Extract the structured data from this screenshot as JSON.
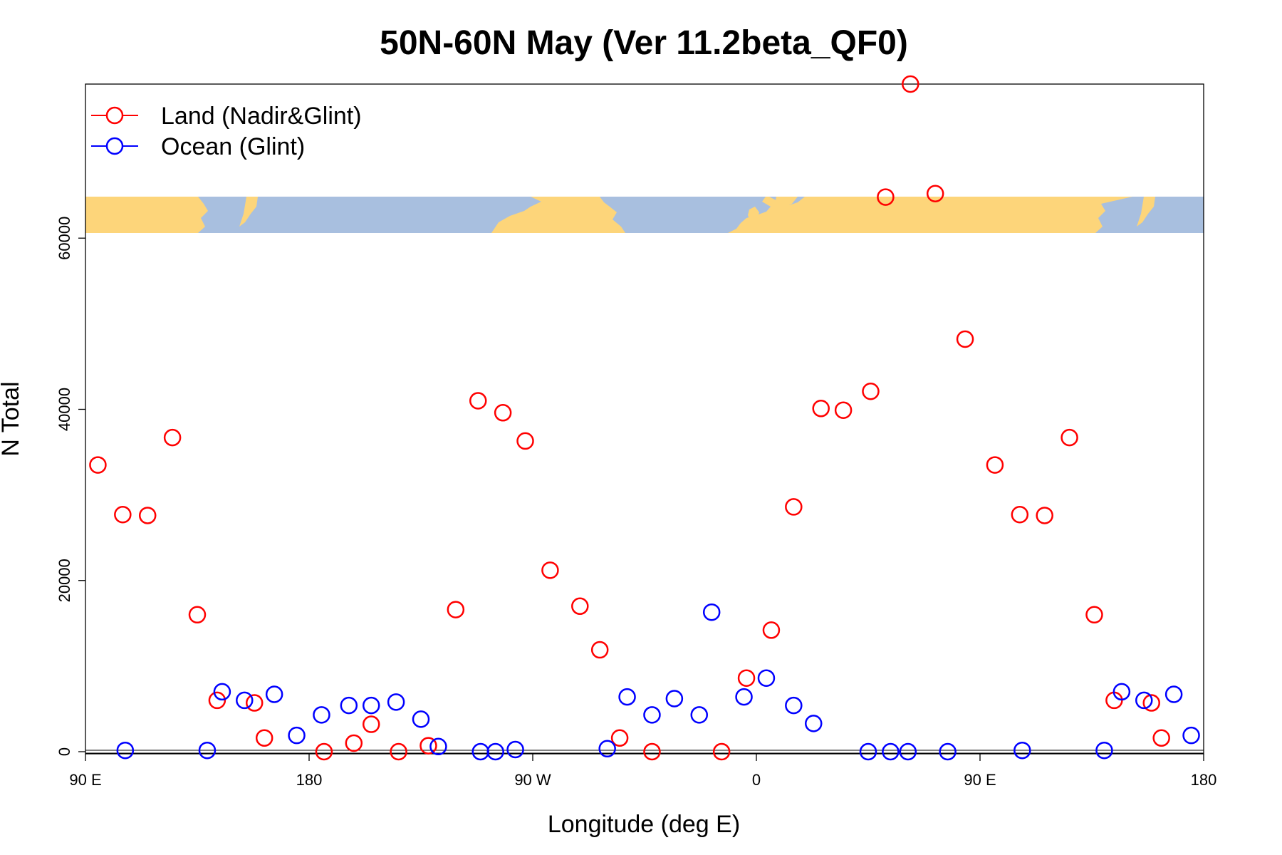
{
  "chart_data": {
    "type": "scatter",
    "title": "50N-60N May (Ver 11.2beta_QF0)",
    "xlabel": "Longitude (deg E)",
    "ylabel": "N Total",
    "xlim": [
      90,
      540
    ],
    "ylim": [
      0,
      78000
    ],
    "x_ticks": [
      {
        "value": 90,
        "label": "90 E"
      },
      {
        "value": 180,
        "label": "180"
      },
      {
        "value": 270,
        "label": "90 W"
      },
      {
        "value": 360,
        "label": "0"
      },
      {
        "value": 450,
        "label": "90 E"
      },
      {
        "value": 540,
        "label": "180"
      }
    ],
    "y_ticks": [
      {
        "value": 0,
        "label": "0"
      },
      {
        "value": 20000,
        "label": "20000"
      },
      {
        "value": 40000,
        "label": "40000"
      },
      {
        "value": 60000,
        "label": "60000"
      }
    ],
    "grid": false,
    "legend_position": "top-left",
    "map_strip": {
      "description_free": true,
      "y_range": [
        60800,
        65000
      ],
      "land_color": "#fdd57a",
      "ocean_color": "#a8bfdf"
    },
    "series": [
      {
        "name": "Land (Nadir&Glint)",
        "color": "#ff0000",
        "points": [
          [
            95,
            33500
          ],
          [
            105,
            27700
          ],
          [
            115,
            27600
          ],
          [
            125,
            36700
          ],
          [
            135,
            16000
          ],
          [
            143,
            6000
          ],
          [
            158,
            5700
          ],
          [
            162,
            1600
          ],
          [
            186,
            0
          ],
          [
            198,
            1000
          ],
          [
            205,
            3200
          ],
          [
            216,
            0
          ],
          [
            228,
            700
          ],
          [
            239,
            16600
          ],
          [
            248,
            41000
          ],
          [
            258,
            39600
          ],
          [
            267,
            36300
          ],
          [
            277,
            21200
          ],
          [
            289,
            17000
          ],
          [
            297,
            11900
          ],
          [
            305,
            1600
          ],
          [
            318,
            0
          ],
          [
            346,
            0
          ],
          [
            356,
            8600
          ],
          [
            366,
            14200
          ],
          [
            375,
            28600
          ],
          [
            386,
            40100
          ],
          [
            395,
            39900
          ],
          [
            406,
            42100
          ],
          [
            412,
            64800
          ],
          [
            422,
            78000
          ],
          [
            432,
            65200
          ],
          [
            444,
            48200
          ],
          [
            456,
            33500
          ],
          [
            466,
            27700
          ],
          [
            476,
            27600
          ],
          [
            486,
            36700
          ],
          [
            496,
            16000
          ],
          [
            504,
            6000
          ],
          [
            519,
            5700
          ],
          [
            523,
            1600
          ]
        ]
      },
      {
        "name": "Ocean (Glint)",
        "color": "#0000ff",
        "points": [
          [
            106,
            150
          ],
          [
            139,
            150
          ],
          [
            145,
            7000
          ],
          [
            154,
            6000
          ],
          [
            166,
            6700
          ],
          [
            175,
            1900
          ],
          [
            185,
            4300
          ],
          [
            196,
            5400
          ],
          [
            205,
            5400
          ],
          [
            215,
            5800
          ],
          [
            225,
            3800
          ],
          [
            232,
            600
          ],
          [
            249,
            0
          ],
          [
            255,
            0
          ],
          [
            263,
            250
          ],
          [
            300,
            350
          ],
          [
            308,
            6400
          ],
          [
            318,
            4300
          ],
          [
            327,
            6200
          ],
          [
            337,
            4300
          ],
          [
            342,
            16300
          ],
          [
            355,
            6400
          ],
          [
            364,
            8600
          ],
          [
            375,
            5400
          ],
          [
            383,
            3300
          ],
          [
            405,
            0
          ],
          [
            414,
            0
          ],
          [
            421,
            0
          ],
          [
            437,
            0
          ],
          [
            467,
            150
          ],
          [
            500,
            150
          ],
          [
            507,
            7000
          ],
          [
            516,
            6000
          ],
          [
            528,
            6700
          ],
          [
            535,
            1900
          ]
        ]
      }
    ]
  }
}
